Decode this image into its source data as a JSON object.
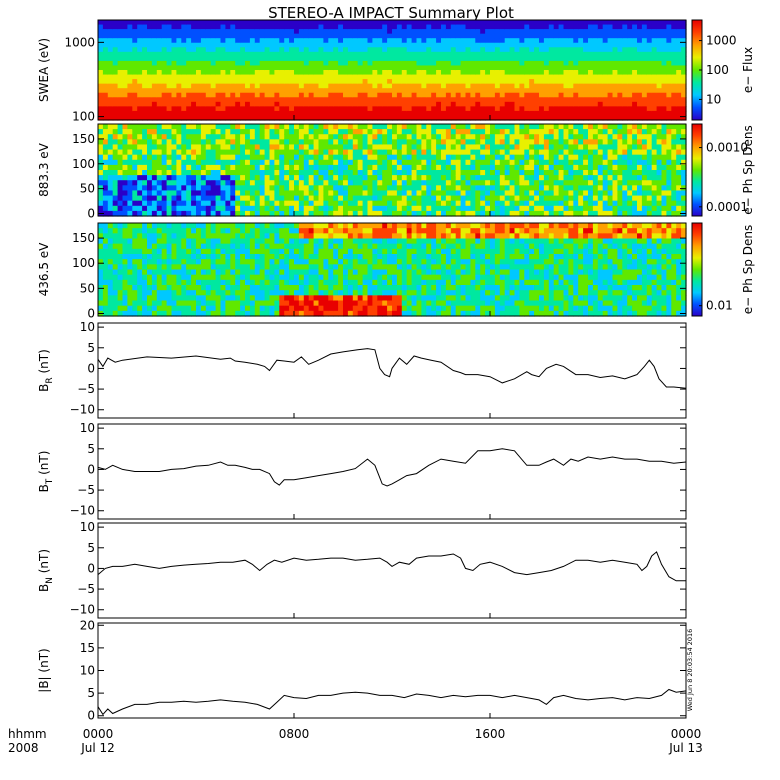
{
  "title": "STEREO-A IMPACT Summary Plot",
  "colors": {
    "axis": "#000000",
    "trace": "#000000",
    "background": "#ffffff",
    "colormap": [
      "#2a00c8",
      "#0050ff",
      "#00c8ff",
      "#00e8a0",
      "#60e800",
      "#e8f000",
      "#ffa000",
      "#ff4000",
      "#e80000"
    ]
  },
  "time_axis": {
    "label_row1": "hhmm",
    "label_row2": "2008",
    "ticks": [
      {
        "hour": 0,
        "label": "0000",
        "date": "Jul 12"
      },
      {
        "hour": 8,
        "label": "0800",
        "date": ""
      },
      {
        "hour": 16,
        "label": "1600",
        "date": ""
      },
      {
        "hour": 24,
        "label": "0000",
        "date": "Jul 13"
      }
    ],
    "range_hours": [
      0,
      24
    ]
  },
  "timestamp": "Wed Jun  8 20:03:54 2016",
  "chart_data": [
    {
      "type": "heatmap",
      "ylabel": "SWEA (eV)",
      "yscale": "log",
      "yticks": [
        {
          "value": 100,
          "label": "100"
        },
        {
          "value": 1000,
          "label": "1000"
        }
      ],
      "ylim": [
        90,
        2000
      ],
      "colorbar": {
        "label": "e− Flux",
        "scale": "log",
        "ticks": [
          {
            "value": 10,
            "label": "10"
          },
          {
            "value": 100,
            "label": "100"
          },
          {
            "value": 1000,
            "label": "1000"
          }
        ],
        "range": [
          2,
          5000
        ]
      }
    },
    {
      "type": "heatmap",
      "ylabel": "883.3 eV",
      "ylim": [
        -5,
        180
      ],
      "yticks": [
        {
          "value": 0,
          "label": "0"
        },
        {
          "value": 50,
          "label": "50"
        },
        {
          "value": 100,
          "label": "100"
        },
        {
          "value": 150,
          "label": "150"
        }
      ],
      "colorbar": {
        "label": "e− Ph Sp Dens",
        "scale": "log",
        "ticks": [
          {
            "value": 0.0001,
            "label": "0.0001"
          },
          {
            "value": 0.001,
            "label": "0.0010"
          }
        ],
        "range": [
          7e-05,
          0.0025
        ]
      }
    },
    {
      "type": "heatmap",
      "ylabel": "436.5 eV",
      "ylim": [
        -5,
        180
      ],
      "yticks": [
        {
          "value": 0,
          "label": "0"
        },
        {
          "value": 50,
          "label": "50"
        },
        {
          "value": 100,
          "label": "100"
        },
        {
          "value": 150,
          "label": "150"
        }
      ],
      "colorbar": {
        "label": "e− Ph Sp Dens",
        "scale": "log",
        "ticks": [
          {
            "value": 0.01,
            "label": "0.01"
          }
        ],
        "range": [
          0.008,
          0.06
        ]
      }
    },
    {
      "type": "line",
      "ylabel": "B",
      "ylabel_sub": "R",
      "ylabel_unit": " (nT)",
      "ylim": [
        -12,
        11
      ],
      "yticks": [
        {
          "value": -10,
          "label": "−10"
        },
        {
          "value": -5,
          "label": "−5"
        },
        {
          "value": 0,
          "label": "0"
        },
        {
          "value": 5,
          "label": "5"
        },
        {
          "value": 10,
          "label": "10"
        }
      ],
      "x": [
        0,
        0.2,
        0.4,
        0.7,
        1,
        2,
        3,
        4,
        5,
        5.4,
        5.6,
        6,
        6.5,
        6.8,
        7,
        7.3,
        7.6,
        8,
        8.3,
        8.6,
        9,
        9.5,
        10,
        10.6,
        11,
        11.3,
        11.5,
        11.7,
        11.9,
        12,
        12.3,
        12.6,
        12.9,
        13.2,
        13.6,
        14,
        14.5,
        14.8,
        15,
        15.5,
        16,
        16.5,
        17,
        17.5,
        17.7,
        18,
        18.3,
        18.7,
        19,
        19.5,
        20,
        20.5,
        21,
        21.5,
        22,
        22.3,
        22.5,
        22.7,
        22.9,
        23.2,
        23.5,
        24
      ],
      "y": [
        2.2,
        0.5,
        2.5,
        1.5,
        2,
        2.8,
        2.5,
        3,
        2.2,
        2.5,
        1.8,
        1.5,
        1,
        0.5,
        -0.5,
        2,
        1.8,
        1.5,
        2.8,
        1,
        2,
        3.5,
        4,
        4.5,
        4.8,
        4.5,
        0,
        -1.5,
        -2,
        0,
        2.5,
        1,
        3,
        2.5,
        2,
        1.5,
        -0.5,
        -1,
        -1.5,
        -1.5,
        -2,
        -3.5,
        -2.5,
        -0.8,
        -1.5,
        -2,
        0,
        1,
        0.5,
        -1.5,
        -1.5,
        -2.2,
        -1.8,
        -2.5,
        -1.5,
        0.5,
        2,
        0.5,
        -2.5,
        -4.5,
        -4.5,
        -4.8
      ]
    },
    {
      "type": "line",
      "ylabel": "B",
      "ylabel_sub": "T",
      "ylabel_unit": " (nT)",
      "ylim": [
        -12,
        11
      ],
      "yticks": [
        {
          "value": -10,
          "label": "−10"
        },
        {
          "value": -5,
          "label": "−5"
        },
        {
          "value": 0,
          "label": "0"
        },
        {
          "value": 5,
          "label": "5"
        },
        {
          "value": 10,
          "label": "10"
        }
      ],
      "x": [
        0,
        0.3,
        0.6,
        1,
        1.5,
        2,
        2.5,
        3,
        3.5,
        4,
        4.5,
        5,
        5.3,
        5.6,
        6,
        6.3,
        6.6,
        7,
        7.2,
        7.4,
        7.6,
        8,
        8.5,
        9,
        9.5,
        10,
        10.5,
        11,
        11.3,
        11.6,
        11.8,
        12,
        12.3,
        12.6,
        13,
        13.5,
        14,
        14.5,
        15,
        15.5,
        16,
        16.5,
        17,
        17.5,
        18,
        18.3,
        18.6,
        19,
        19.3,
        19.6,
        20,
        20.5,
        21,
        21.5,
        22,
        22.5,
        23,
        23.5,
        24
      ],
      "y": [
        0.5,
        0,
        1,
        0,
        -0.5,
        -0.5,
        -0.5,
        0,
        0.2,
        0.8,
        1,
        1.8,
        1,
        1,
        0.5,
        0,
        0,
        -1,
        -3,
        -3.8,
        -2.5,
        -2.5,
        -2,
        -1.5,
        -1,
        -0.5,
        0.2,
        2.5,
        1,
        -3.5,
        -4,
        -3.5,
        -2.5,
        -1.5,
        -1,
        1,
        2.5,
        2,
        1.5,
        4.5,
        4.5,
        5,
        4.5,
        1,
        1,
        1.8,
        2.5,
        1,
        2.5,
        2,
        3,
        2.5,
        3,
        2.5,
        2.5,
        2,
        2,
        1.5,
        1.8
      ]
    },
    {
      "type": "line",
      "ylabel": "B",
      "ylabel_sub": "N",
      "ylabel_unit": " (nT)",
      "ylim": [
        -12,
        11
      ],
      "yticks": [
        {
          "value": -10,
          "label": "−10"
        },
        {
          "value": -5,
          "label": "−5"
        },
        {
          "value": 0,
          "label": "0"
        },
        {
          "value": 5,
          "label": "5"
        },
        {
          "value": 10,
          "label": "10"
        }
      ],
      "x": [
        0,
        0.3,
        0.6,
        1,
        1.5,
        2,
        2.5,
        3,
        3.5,
        4,
        4.5,
        5,
        5.5,
        6,
        6.3,
        6.6,
        6.9,
        7.2,
        7.5,
        8,
        8.5,
        9,
        9.5,
        10,
        10.5,
        11,
        11.5,
        11.8,
        12,
        12.3,
        12.7,
        13,
        13.5,
        14,
        14.5,
        14.8,
        15,
        15.3,
        15.6,
        16,
        16.5,
        17,
        17.5,
        18,
        18.5,
        19,
        19.5,
        20,
        20.5,
        21,
        21.5,
        22,
        22.2,
        22.4,
        22.6,
        22.8,
        23,
        23.3,
        23.6,
        24
      ],
      "y": [
        -1.5,
        0,
        0.5,
        0.5,
        1,
        0.5,
        0,
        0.5,
        0.8,
        1,
        1.2,
        1.5,
        1.5,
        2,
        1,
        -0.5,
        1,
        2,
        1.5,
        2.5,
        2,
        2.2,
        2.5,
        2.5,
        2,
        2.2,
        2.5,
        1.5,
        0.5,
        1.5,
        1,
        2.5,
        3,
        3,
        3.5,
        2.5,
        0,
        -0.5,
        1,
        1.5,
        0.5,
        -1,
        -1.5,
        -1,
        -0.5,
        0.5,
        2,
        2,
        1.5,
        2,
        1.5,
        1,
        -0.5,
        0.5,
        3,
        4,
        1,
        -2,
        -3,
        -3
      ]
    },
    {
      "type": "line",
      "ylabel": "|B| (nT)",
      "ylim": [
        -0.5,
        20.5
      ],
      "yticks": [
        {
          "value": 0,
          "label": "0"
        },
        {
          "value": 5,
          "label": "5"
        },
        {
          "value": 10,
          "label": "10"
        },
        {
          "value": 15,
          "label": "15"
        },
        {
          "value": 20,
          "label": "20"
        }
      ],
      "x": [
        0,
        0.2,
        0.4,
        0.6,
        1,
        1.5,
        2,
        2.5,
        3,
        3.5,
        4,
        4.5,
        5,
        5.5,
        6,
        6.5,
        7,
        7.3,
        7.6,
        8,
        8.5,
        9,
        9.5,
        10,
        10.5,
        11,
        11.5,
        12,
        12.5,
        13,
        13.5,
        14,
        14.5,
        15,
        15.5,
        16,
        16.5,
        17,
        17.5,
        18,
        18.3,
        18.6,
        19,
        19.5,
        20,
        20.5,
        21,
        21.5,
        22,
        22.5,
        23,
        23.3,
        23.6,
        24
      ],
      "y": [
        2,
        0.3,
        1.5,
        0.5,
        1.5,
        2.5,
        2.5,
        3,
        3,
        3.2,
        3,
        3.2,
        3.5,
        3.2,
        3,
        2.5,
        1.5,
        3,
        4.5,
        4,
        3.8,
        4.5,
        4.5,
        5,
        5.2,
        5,
        4.5,
        4.5,
        4,
        4.8,
        4.5,
        4,
        4.5,
        4.2,
        4.5,
        4.5,
        4,
        4.5,
        4,
        3.5,
        2.5,
        4,
        4.5,
        3.8,
        3.5,
        3.8,
        4,
        3.5,
        4,
        3.8,
        4.5,
        5.8,
        5.2,
        5.5
      ]
    }
  ]
}
